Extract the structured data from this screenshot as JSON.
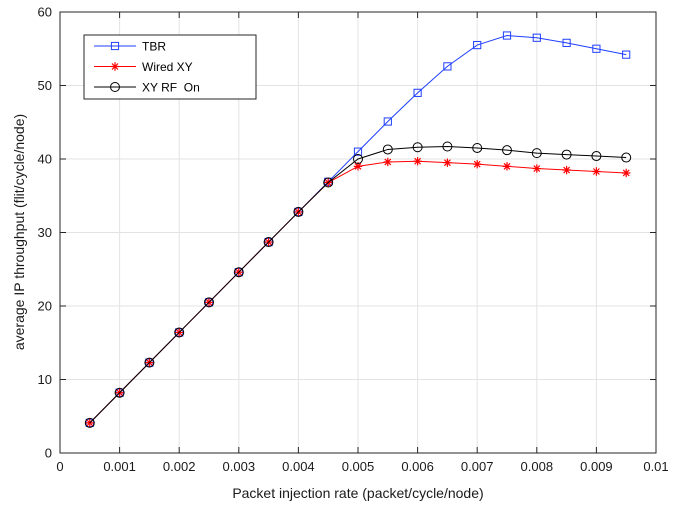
{
  "chart_data": {
    "type": "line",
    "title": "",
    "xlabel": "Packet injection rate (packet/cycle/node)",
    "ylabel": "average IP throughput (flit/cycle/node)",
    "xlim": [
      0,
      0.01
    ],
    "ylim": [
      0,
      60
    ],
    "xticks": [
      0,
      0.001,
      0.002,
      0.003,
      0.004,
      0.005,
      0.006,
      0.007,
      0.008,
      0.009,
      0.01
    ],
    "xtick_labels": [
      "0",
      "0.001",
      "0.002",
      "0.003",
      "0.004",
      "0.005",
      "0.006",
      "0.007",
      "0.008",
      "0.009",
      "0.01"
    ],
    "yticks": [
      0,
      10,
      20,
      30,
      40,
      50,
      60
    ],
    "ytick_labels": [
      "0",
      "10",
      "20",
      "30",
      "40",
      "50",
      "60"
    ],
    "grid": true,
    "legend_position": "top-left",
    "x": [
      0.0005,
      0.001,
      0.0015,
      0.002,
      0.0025,
      0.003,
      0.0035,
      0.004,
      0.0045,
      0.005,
      0.0055,
      0.006,
      0.0065,
      0.007,
      0.0075,
      0.008,
      0.0085,
      0.009,
      0.0095
    ],
    "series": [
      {
        "name": "TBR",
        "color": "#1f3fff",
        "marker": "square",
        "values": [
          4.1,
          8.2,
          12.3,
          16.4,
          20.5,
          24.6,
          28.7,
          32.8,
          36.9,
          41.0,
          45.1,
          49.0,
          52.6,
          55.5,
          56.8,
          56.5,
          55.8,
          55.0,
          54.2
        ]
      },
      {
        "name": "Wired XY",
        "color": "#ff0000",
        "marker": "asterisk",
        "values": [
          4.1,
          8.2,
          12.3,
          16.4,
          20.5,
          24.6,
          28.7,
          32.8,
          36.8,
          39.0,
          39.6,
          39.7,
          39.5,
          39.3,
          39.0,
          38.7,
          38.5,
          38.3,
          38.1
        ]
      },
      {
        "name": "XY RF  On",
        "color": "#000000",
        "marker": "circle",
        "values": [
          4.1,
          8.2,
          12.3,
          16.4,
          20.5,
          24.6,
          28.7,
          32.8,
          36.8,
          40.0,
          41.3,
          41.6,
          41.7,
          41.5,
          41.2,
          40.8,
          40.6,
          40.4,
          40.2
        ]
      }
    ]
  }
}
